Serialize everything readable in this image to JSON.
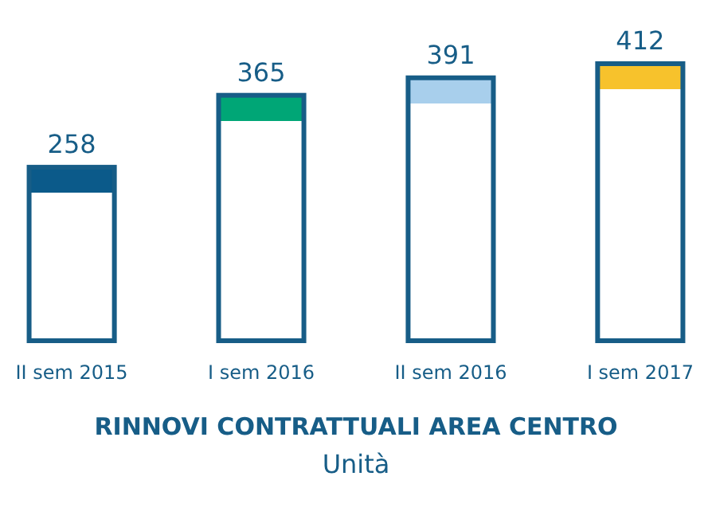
{
  "chart_data": {
    "type": "bar",
    "title": "RINNOVI CONTRATTUALI AREA CENTRO",
    "subtitle": "Unità",
    "categories": [
      "II sem 2015",
      "I sem 2016",
      "II sem 2016",
      "I sem 2017"
    ],
    "values": [
      258,
      365,
      391,
      412
    ],
    "color": "#175d87",
    "colors": [
      "#0b5a8a",
      "#00a676",
      "#a8cfec",
      "#f7c22c"
    ],
    "data_labels": true
  }
}
